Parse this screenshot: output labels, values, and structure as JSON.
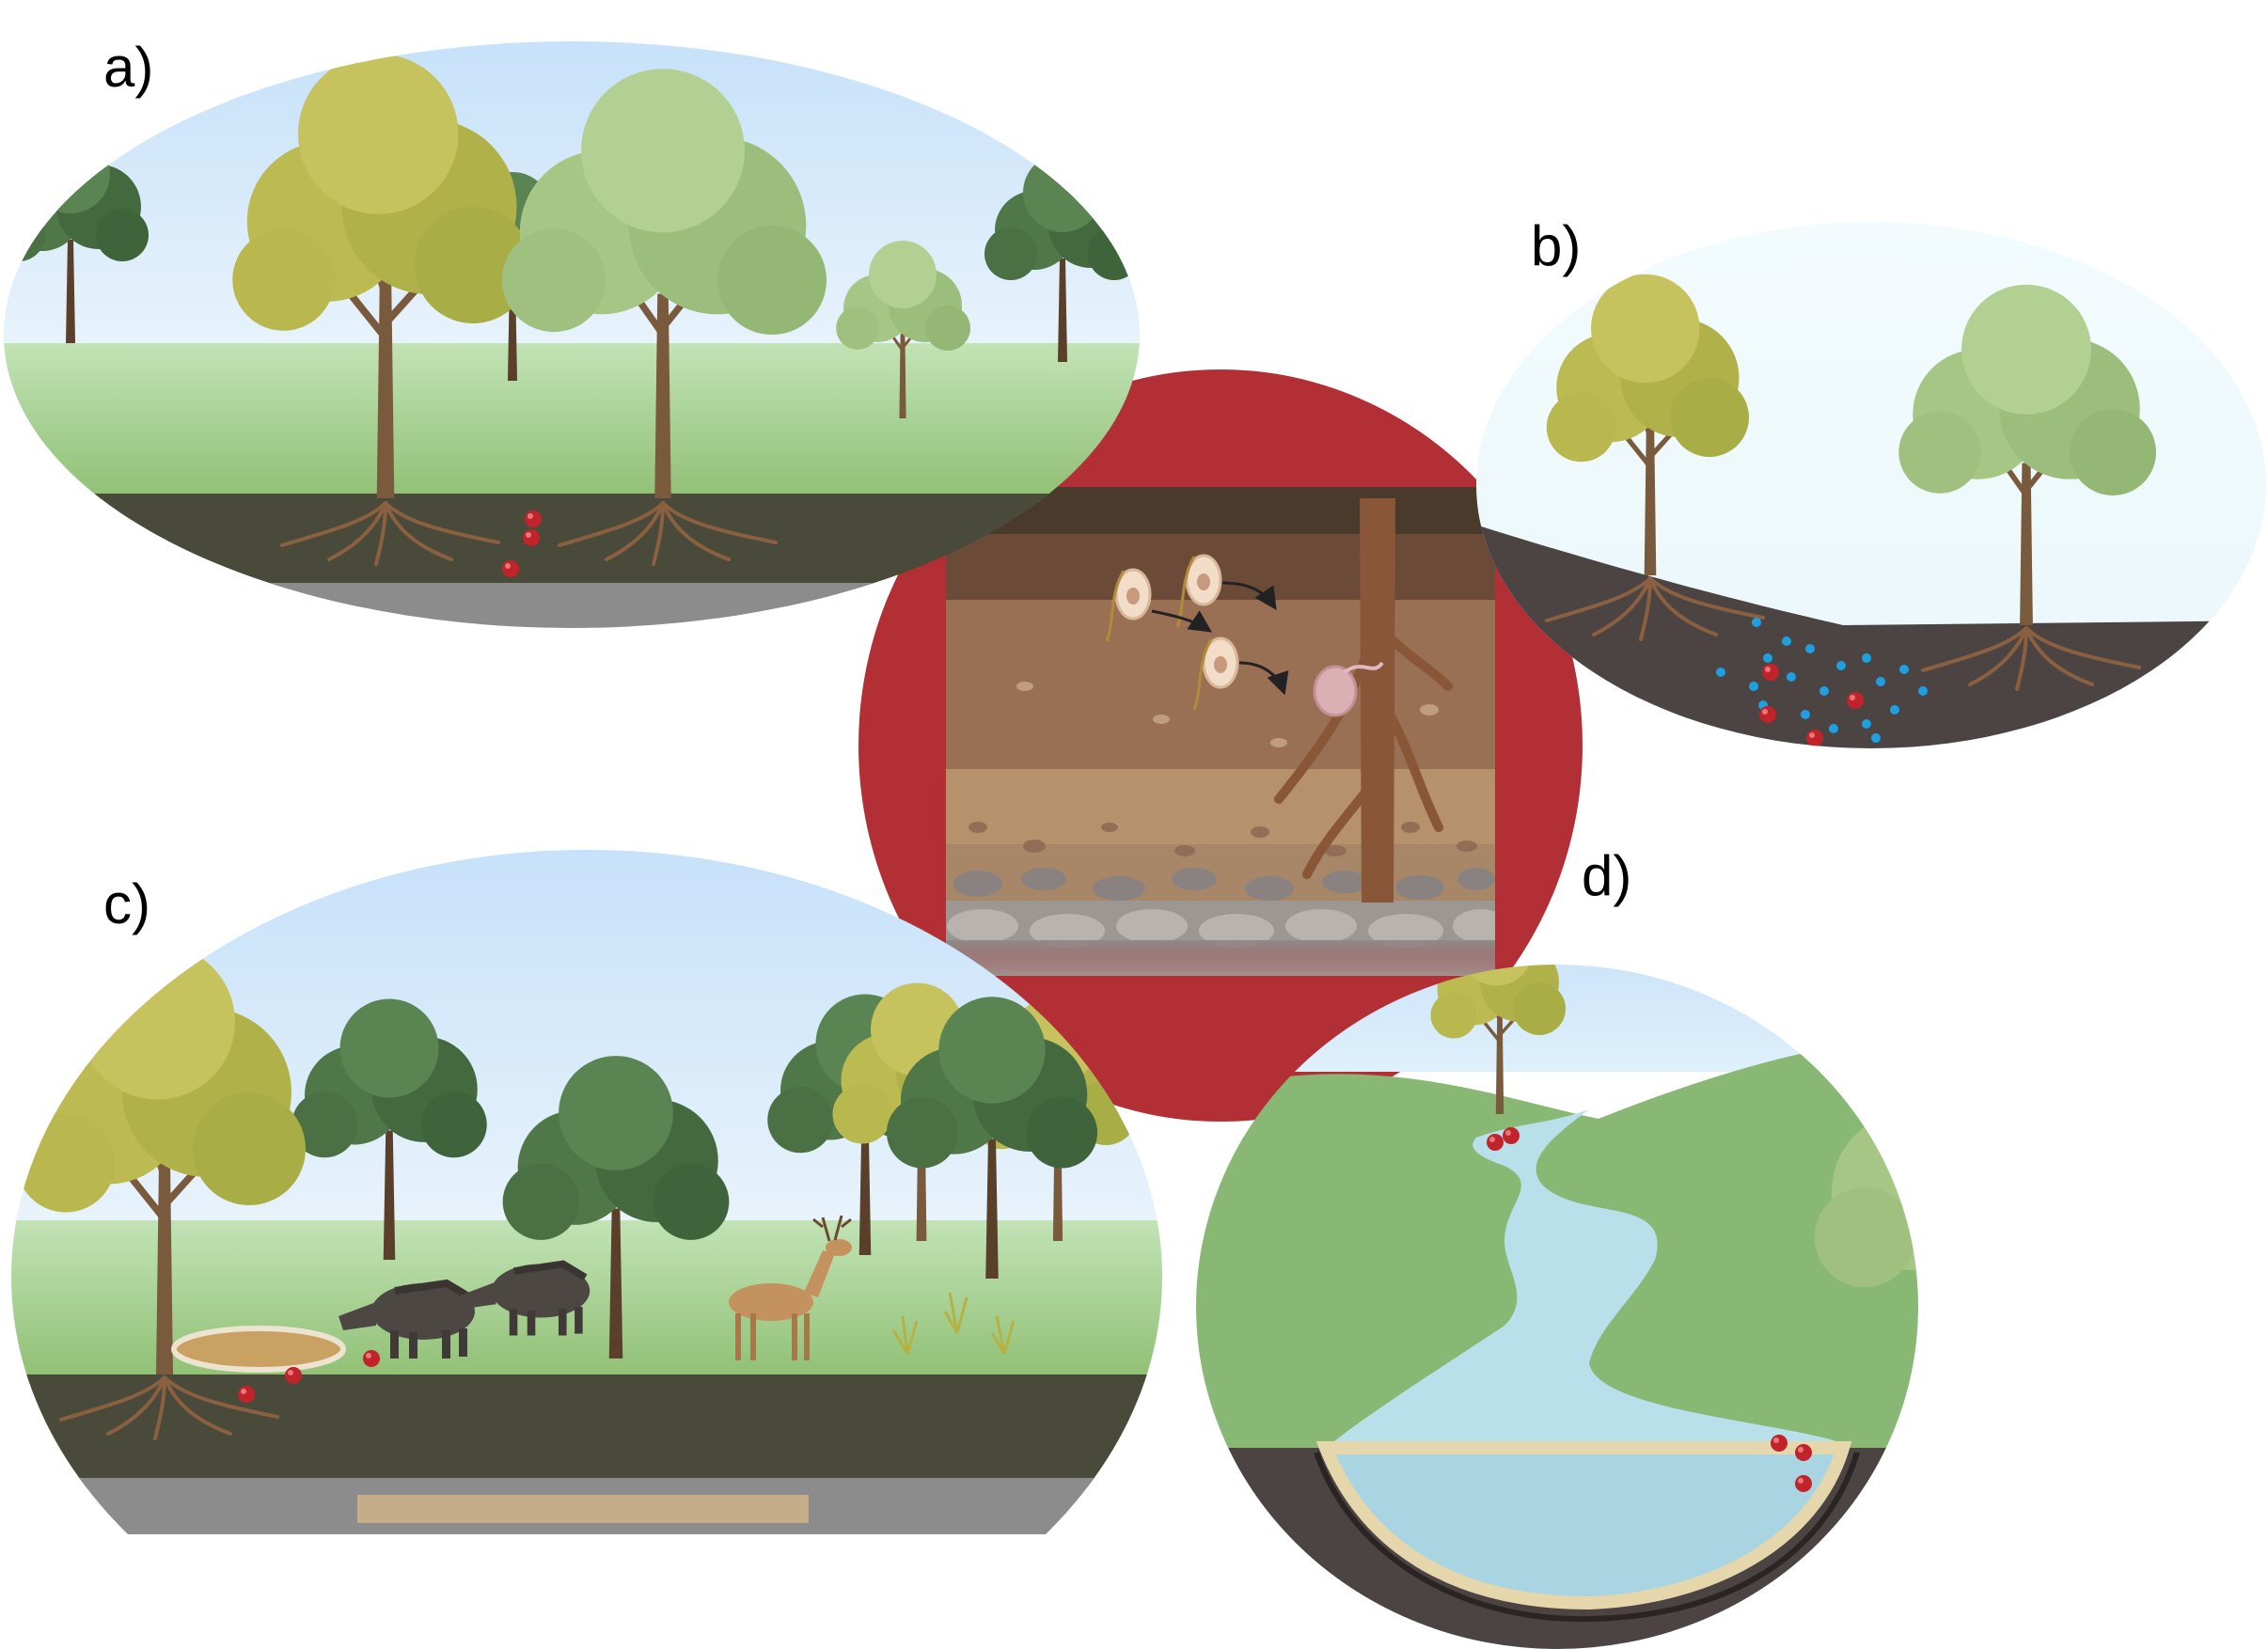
{
  "labels": {
    "a": "a)",
    "b": "b)",
    "c": "c)",
    "d": "d)"
  },
  "colors": {
    "sky_top": "#cfe6fb",
    "sky_bottom": "#e9f3fb",
    "grass_light": "#b7dcae",
    "grass": "#8cbd6e",
    "soil_dark": "#4a4a3a",
    "soil_hill": "#4b4443",
    "root_brown": "#8a6041",
    "trunk": "#7a5a3c",
    "tree_yellow": "#b9b84f",
    "tree_light_green": "#a8c888",
    "tree_dark_green": "#4f7748",
    "seed_red": "#c0242a",
    "nutrient_blue": "#1ea0e0",
    "circle_red": "#b22f35",
    "water": "#b9e0ea",
    "river_bank": "#e6d6ac"
  },
  "icons": [
    "tree-icon",
    "seed-icon",
    "wild-boar-icon",
    "deer-icon",
    "spore-icon",
    "root-icon",
    "river-icon"
  ]
}
